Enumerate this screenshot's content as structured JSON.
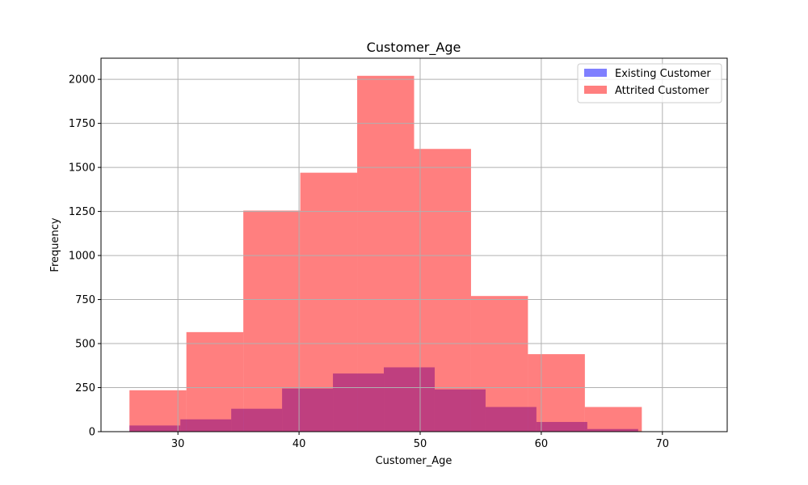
{
  "chart_data": {
    "type": "bar",
    "title": "Customer_Age",
    "xlabel": "Customer_Age",
    "ylabel": "Frequency",
    "xlim": [
      23.65,
      75.35
    ],
    "ylim": [
      0,
      2120
    ],
    "xticks": [
      30,
      40,
      50,
      60,
      70
    ],
    "yticks": [
      0,
      250,
      500,
      750,
      1000,
      1250,
      1500,
      1750,
      2000
    ],
    "grid": true,
    "legend_position": "top-right",
    "series": [
      {
        "name": "Existing Customer",
        "color": "#0000ff",
        "alpha": 0.5,
        "bin_edges": [
          26,
          30.2,
          34.4,
          38.6,
          42.8,
          47,
          51.2,
          55.4,
          59.6,
          63.8,
          68
        ],
        "values": [
          35,
          70,
          130,
          245,
          330,
          365,
          240,
          140,
          55,
          15
        ]
      },
      {
        "name": "Attrited Customer",
        "color": "#ff0000",
        "alpha": 0.5,
        "bin_edges": [
          26,
          30.7,
          35.4,
          40.1,
          44.8,
          49.5,
          54.2,
          58.9,
          63.6,
          68.3,
          73
        ],
        "values": [
          235,
          565,
          1255,
          1470,
          2020,
          1605,
          770,
          440,
          140,
          0
        ]
      }
    ]
  }
}
